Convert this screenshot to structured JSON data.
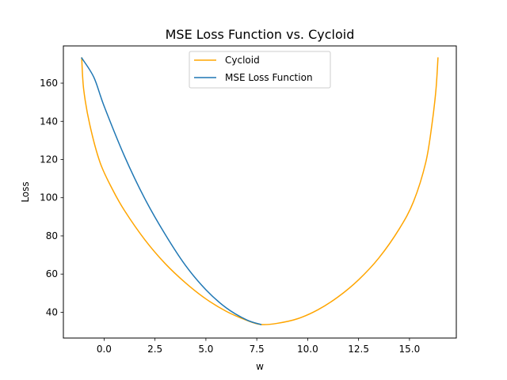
{
  "chart_data": {
    "type": "line",
    "title": "MSE Loss Function vs. Cycloid",
    "xlabel": "w",
    "ylabel": "Loss",
    "xlim": [
      -2.0,
      17.3
    ],
    "ylim": [
      26.5,
      179.5
    ],
    "xticks": [
      0,
      2.5,
      5,
      7.5,
      10,
      12.5,
      15
    ],
    "xtick_labels": [
      "0.0",
      "2.5",
      "5.0",
      "7.5",
      "10.0",
      "12.5",
      "15.0"
    ],
    "yticks": [
      40,
      60,
      80,
      100,
      120,
      140,
      160
    ],
    "ytick_labels": [
      "40",
      "60",
      "80",
      "100",
      "120",
      "140",
      "160"
    ],
    "grid": false,
    "legend_position": "top-center",
    "series": [
      {
        "name": "Cycloid",
        "color": "#ffa500",
        "points": [
          [
            -1.1,
            173.2
          ],
          [
            -1.0,
            156.5
          ],
          [
            -0.7,
            138.1
          ],
          [
            -0.2,
            118.5
          ],
          [
            0.4,
            104.6
          ],
          [
            1.0,
            93.3
          ],
          [
            2.0,
            78.0
          ],
          [
            3.0,
            65.5
          ],
          [
            4.0,
            55.4
          ],
          [
            5.0,
            47.0
          ],
          [
            6.0,
            40.5
          ],
          [
            7.0,
            35.8
          ],
          [
            7.7,
            33.6
          ],
          [
            8.5,
            34.2
          ],
          [
            9.5,
            36.6
          ],
          [
            10.5,
            41.3
          ],
          [
            11.5,
            48.1
          ],
          [
            12.5,
            57.0
          ],
          [
            13.5,
            68.5
          ],
          [
            14.5,
            83.7
          ],
          [
            15.2,
            98.0
          ],
          [
            15.8,
            118.5
          ],
          [
            16.1,
            138.1
          ],
          [
            16.3,
            156.5
          ],
          [
            16.4,
            173.2
          ]
        ]
      },
      {
        "name": "MSE Loss Function",
        "color": "#1f77b4",
        "points": [
          [
            -1.1,
            173.2
          ],
          [
            -0.5,
            163.0
          ],
          [
            0.0,
            148.0
          ],
          [
            1.0,
            121.8
          ],
          [
            2.0,
            99.5
          ],
          [
            3.0,
            80.8
          ],
          [
            4.0,
            64.5
          ],
          [
            5.0,
            51.8
          ],
          [
            6.0,
            42.3
          ],
          [
            7.0,
            36.0
          ],
          [
            7.7,
            33.6
          ]
        ]
      }
    ]
  }
}
